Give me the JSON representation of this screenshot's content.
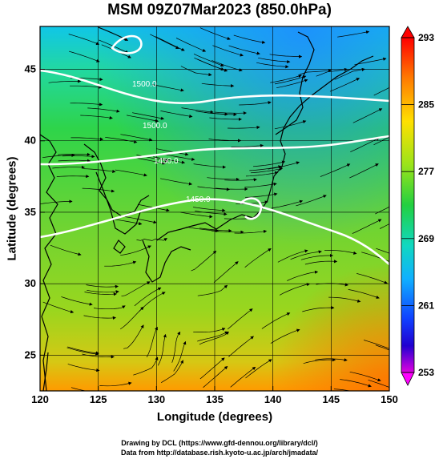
{
  "title": "MSM 09Z07Mar2023 (850.0hPa)",
  "map": {
    "x_axis": {
      "label": "Longitude (degrees)",
      "range": [
        120,
        150
      ],
      "ticks": [
        "120",
        "125",
        "130",
        "135",
        "140",
        "145",
        "150"
      ]
    },
    "y_axis": {
      "label": "Latitude  (degrees)",
      "range": [
        22.5,
        48
      ],
      "ticks": [
        "25",
        "30",
        "35",
        "40",
        "45"
      ]
    },
    "colorbar": {
      "ticks": [
        "293",
        "285",
        "277",
        "269",
        "261",
        "253"
      ],
      "range": [
        253,
        293
      ]
    },
    "contour_labels": [
      "1500.0",
      "1500.0",
      "1450.0",
      "1450.0"
    ],
    "colors": {
      "cold": "#1e64ff",
      "mid": "#2bd64a",
      "warm": "#ffb400",
      "hot": "#ff2a00"
    }
  },
  "credits": {
    "line1": "Drawing by DCL (https://www.gfd-dennou.org/library/dcl/)",
    "line2": "Data from http://database.rish.kyoto-u.ac.jp/arch/jmadata/"
  }
}
